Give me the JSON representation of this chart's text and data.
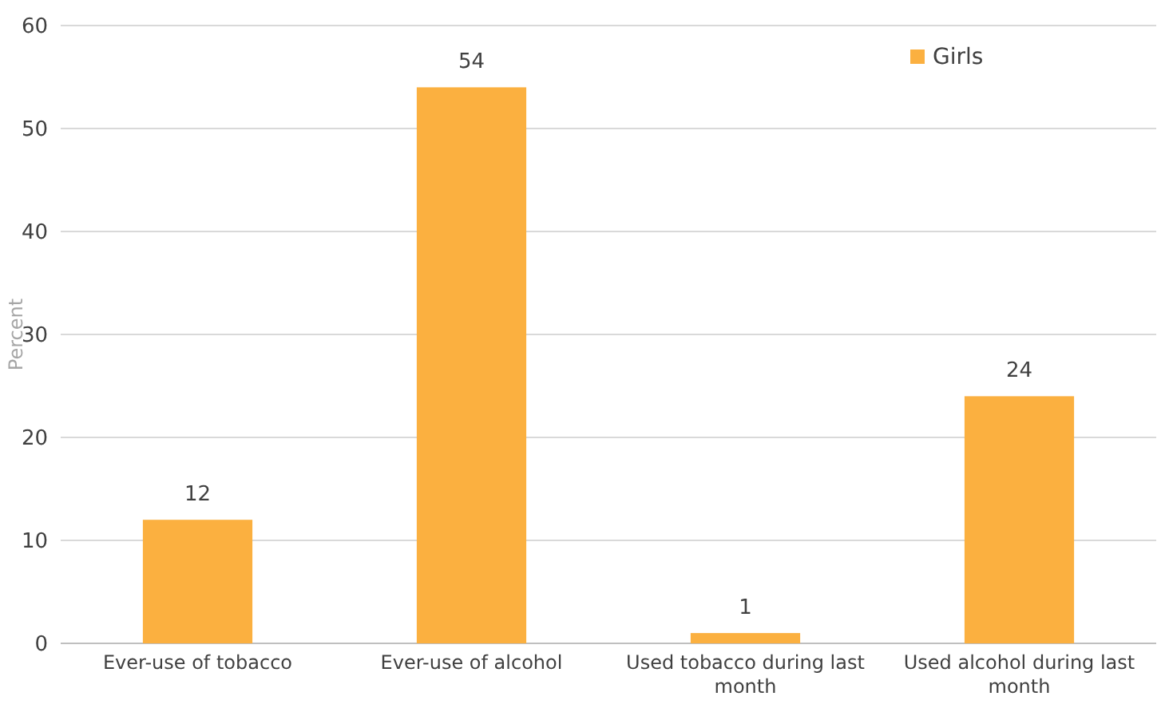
{
  "chart_data": {
    "type": "bar",
    "ylabel": "Percent",
    "categories": [
      "Ever-use of tobacco",
      "Ever-use of alcohol",
      "Used tobacco during last month",
      "Used alcohol during last month"
    ],
    "series": [
      {
        "name": "Girls",
        "color": "#fbb040",
        "values": [
          12,
          54,
          1,
          24
        ]
      }
    ],
    "ylim": [
      0,
      60
    ],
    "yticks": [
      0,
      10,
      20,
      30,
      40,
      50,
      60
    ],
    "grid": "y",
    "legend": "top right",
    "data_labels": true
  }
}
